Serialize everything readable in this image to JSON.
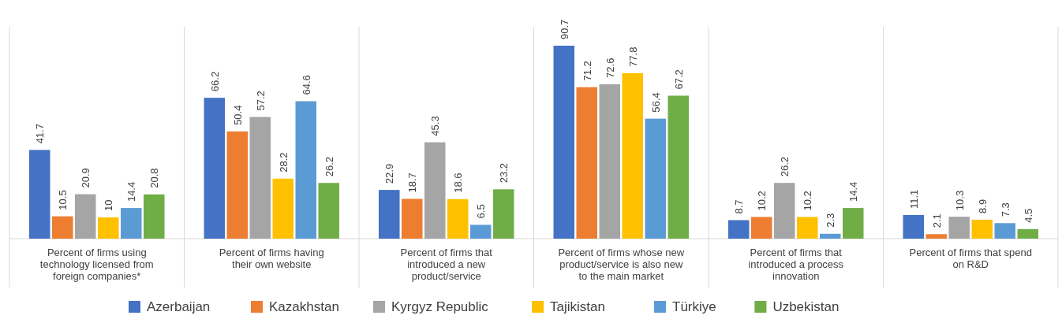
{
  "chart_data": {
    "type": "bar",
    "categories": [
      "Percent of firms using technology licensed from foreign companies*",
      "Percent of firms having their own website",
      "Percent of firms that introduced a new product/service",
      "Percent of firms whose new product/service is also new to the main market",
      "Percent of firms that introduced a process innovation",
      "Percent of firms that spend on R&D"
    ],
    "series": [
      {
        "name": "Azerbaijan",
        "color": "#4472c4",
        "values": [
          41.7,
          66.2,
          22.9,
          90.7,
          8.7,
          11.1
        ]
      },
      {
        "name": "Kazakhstan",
        "color": "#ed7d31",
        "values": [
          10.5,
          50.4,
          18.7,
          71.2,
          10.2,
          2.1
        ]
      },
      {
        "name": "Kyrgyz Republic",
        "color": "#a5a5a5",
        "values": [
          20.9,
          57.2,
          45.3,
          72.6,
          26.2,
          10.3
        ]
      },
      {
        "name": "Tajikistan",
        "color": "#ffc000",
        "values": [
          10,
          28.2,
          18.6,
          77.8,
          10.2,
          8.9
        ]
      },
      {
        "name": "Türkiye",
        "color": "#5b9bd5",
        "values": [
          14.4,
          64.6,
          6.5,
          56.4,
          2.3,
          7.3
        ]
      },
      {
        "name": "Uzbekistan",
        "color": "#70ad47",
        "values": [
          20.8,
          26.2,
          23.2,
          67.2,
          14.4,
          4.5
        ]
      }
    ],
    "data_labels": true,
    "legend": "bottom",
    "grid": "x"
  }
}
